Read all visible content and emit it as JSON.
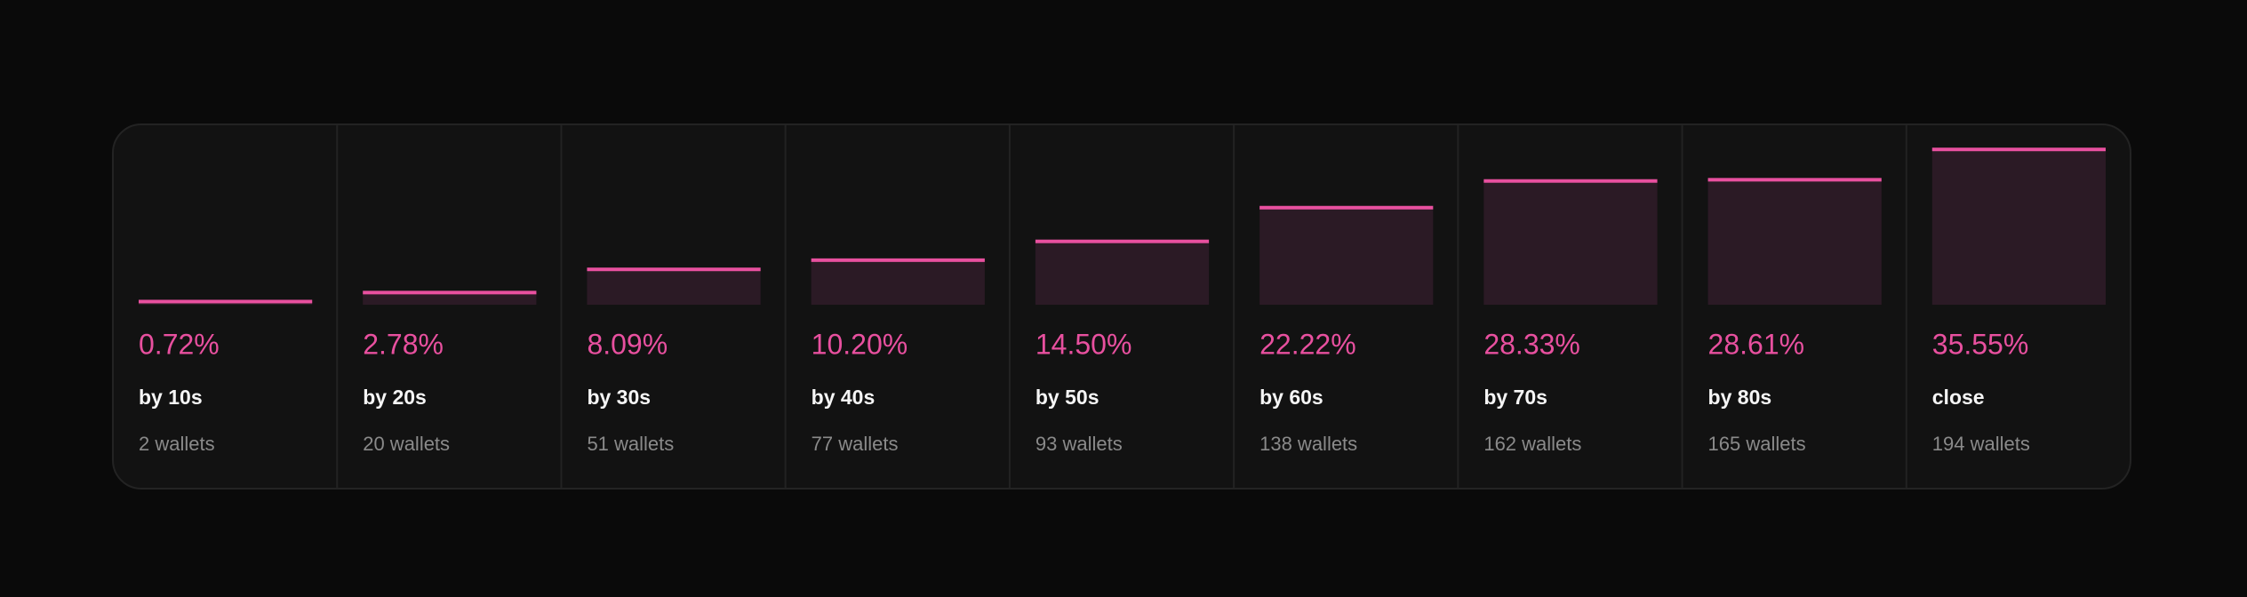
{
  "chart_data": {
    "type": "bar",
    "categories": [
      "by 10s",
      "by 20s",
      "by 30s",
      "by 40s",
      "by 50s",
      "by 60s",
      "by 70s",
      "by 80s",
      "close"
    ],
    "values": [
      0.72,
      2.78,
      8.09,
      10.2,
      14.5,
      22.22,
      28.33,
      28.61,
      35.55
    ],
    "value_labels": [
      "0.72%",
      "2.78%",
      "8.09%",
      "10.20%",
      "14.50%",
      "22.22%",
      "28.33%",
      "28.61%",
      "35.55%"
    ],
    "wallet_labels": [
      "2 wallets",
      "20 wallets",
      "51 wallets",
      "77 wallets",
      "93 wallets",
      "138 wallets",
      "162 wallets",
      "165 wallets",
      "194 wallets"
    ],
    "ylim": [
      0,
      36
    ],
    "color": "#e8509f",
    "fill": "#2b1a25"
  }
}
